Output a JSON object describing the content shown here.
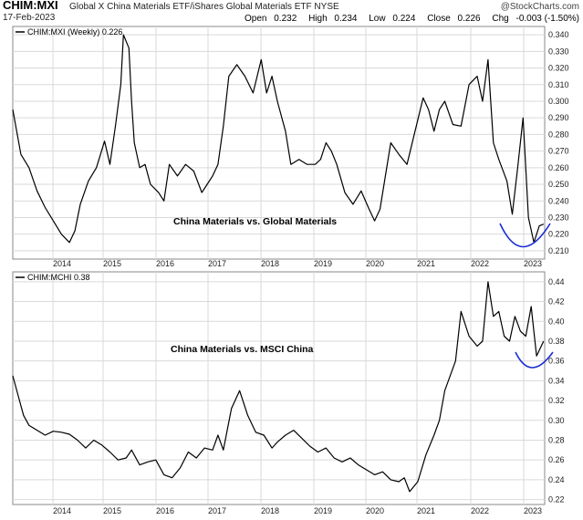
{
  "header": {
    "symbol": "CHIM:MXI",
    "description": "Global X China Materials ETF/iShares Global Materials ETF  NYSE",
    "brand": "@StockCharts.com",
    "date": "17-Feb-2023",
    "open_label": "Open",
    "open": "0.232",
    "high_label": "High",
    "high": "0.234",
    "low_label": "Low",
    "low": "0.224",
    "close_label": "Close",
    "close": "0.226",
    "chg_label": "Chg",
    "chg": "-0.003 (-1.50%)",
    "dropdown_icon": "triangle-down-icon"
  },
  "colors": {
    "price_line": "#000000",
    "annotation_curve": "#1a2fd6",
    "grid": "#d9d9d9",
    "background": "#ffffff"
  },
  "chart_data": [
    {
      "type": "line",
      "legend": "CHIM:MXI (Weekly) 0.226",
      "annotation": "China Materials vs. Global Materials",
      "xticks": [
        "2014",
        "2015",
        "2016",
        "2017",
        "2018",
        "2019",
        "2020",
        "2021",
        "2022",
        "2023"
      ],
      "yticks": [
        "0.210",
        "0.220",
        "0.230",
        "0.240",
        "0.250",
        "0.260",
        "0.270",
        "0.280",
        "0.290",
        "0.300",
        "0.310",
        "0.320",
        "0.330",
        "0.340"
      ],
      "ylim": [
        0.205,
        0.345
      ],
      "xlim": [
        2013.3,
        2023.15
      ],
      "grid": true,
      "x": [
        2013.3,
        2013.45,
        2013.6,
        2013.75,
        2013.9,
        2014.05,
        2014.2,
        2014.35,
        2014.45,
        2014.55,
        2014.7,
        2014.85,
        2015.0,
        2015.1,
        2015.2,
        2015.3,
        2015.35,
        2015.45,
        2015.5,
        2015.55,
        2015.65,
        2015.75,
        2015.85,
        2016.0,
        2016.1,
        2016.2,
        2016.35,
        2016.5,
        2016.65,
        2016.8,
        2016.9,
        2017.0,
        2017.1,
        2017.2,
        2017.3,
        2017.45,
        2017.6,
        2017.75,
        2017.9,
        2018.0,
        2018.1,
        2018.2,
        2018.35,
        2018.45,
        2018.6,
        2018.75,
        2018.9,
        2019.0,
        2019.1,
        2019.2,
        2019.3,
        2019.45,
        2019.6,
        2019.75,
        2019.9,
        2020.0,
        2020.1,
        2020.2,
        2020.3,
        2020.45,
        2020.6,
        2020.75,
        2020.9,
        2021.0,
        2021.1,
        2021.2,
        2021.3,
        2021.45,
        2021.6,
        2021.75,
        2021.9,
        2022.0,
        2022.1,
        2022.2,
        2022.3,
        2022.45,
        2022.55,
        2022.65,
        2022.75,
        2022.85,
        2022.95,
        2023.05,
        2023.13
      ],
      "y": [
        0.295,
        0.268,
        0.26,
        0.246,
        0.236,
        0.228,
        0.22,
        0.215,
        0.222,
        0.238,
        0.252,
        0.26,
        0.276,
        0.262,
        0.285,
        0.31,
        0.34,
        0.332,
        0.3,
        0.275,
        0.26,
        0.262,
        0.25,
        0.245,
        0.24,
        0.262,
        0.255,
        0.262,
        0.258,
        0.245,
        0.25,
        0.255,
        0.262,
        0.285,
        0.315,
        0.322,
        0.315,
        0.305,
        0.325,
        0.305,
        0.315,
        0.3,
        0.282,
        0.262,
        0.265,
        0.262,
        0.262,
        0.265,
        0.275,
        0.27,
        0.262,
        0.245,
        0.238,
        0.246,
        0.235,
        0.228,
        0.235,
        0.255,
        0.275,
        0.268,
        0.262,
        0.282,
        0.302,
        0.295,
        0.282,
        0.295,
        0.3,
        0.286,
        0.285,
        0.31,
        0.315,
        0.3,
        0.325,
        0.275,
        0.265,
        0.252,
        0.232,
        0.26,
        0.29,
        0.23,
        0.215,
        0.225,
        0.226
      ]
    },
    {
      "type": "line",
      "legend": "CHIM:MCHI 0.38",
      "annotation": "China Materials vs. MSCI China",
      "xticks": [
        "2014",
        "2015",
        "2016",
        "2017",
        "2018",
        "2019",
        "2020",
        "2021",
        "2022",
        "2023"
      ],
      "yticks": [
        "0.22",
        "0.24",
        "0.26",
        "0.28",
        "0.30",
        "0.32",
        "0.34",
        "0.36",
        "0.38",
        "0.40",
        "0.42",
        "0.44"
      ],
      "ylim": [
        0.215,
        0.45
      ],
      "xlim": [
        2013.3,
        2023.15
      ],
      "grid": true,
      "x": [
        2013.3,
        2013.4,
        2013.5,
        2013.6,
        2013.75,
        2013.9,
        2014.05,
        2014.2,
        2014.35,
        2014.5,
        2014.65,
        2014.8,
        2014.95,
        2015.1,
        2015.25,
        2015.4,
        2015.5,
        2015.65,
        2015.8,
        2015.95,
        2016.1,
        2016.25,
        2016.4,
        2016.55,
        2016.7,
        2016.85,
        2017.0,
        2017.1,
        2017.2,
        2017.35,
        2017.5,
        2017.65,
        2017.8,
        2017.95,
        2018.1,
        2018.2,
        2018.35,
        2018.5,
        2018.65,
        2018.8,
        2018.95,
        2019.1,
        2019.25,
        2019.4,
        2019.55,
        2019.7,
        2019.85,
        2020.0,
        2020.15,
        2020.3,
        2020.45,
        2020.55,
        2020.65,
        2020.8,
        2020.95,
        2021.1,
        2021.2,
        2021.3,
        2021.4,
        2021.5,
        2021.6,
        2021.75,
        2021.9,
        2022.0,
        2022.1,
        2022.2,
        2022.3,
        2022.4,
        2022.5,
        2022.6,
        2022.7,
        2022.8,
        2022.9,
        2023.0,
        2023.13
      ],
      "y": [
        0.345,
        0.325,
        0.305,
        0.295,
        0.29,
        0.285,
        0.289,
        0.288,
        0.286,
        0.28,
        0.272,
        0.28,
        0.275,
        0.268,
        0.26,
        0.262,
        0.27,
        0.255,
        0.258,
        0.26,
        0.245,
        0.242,
        0.252,
        0.268,
        0.262,
        0.272,
        0.27,
        0.285,
        0.27,
        0.312,
        0.33,
        0.305,
        0.288,
        0.285,
        0.272,
        0.278,
        0.285,
        0.29,
        0.282,
        0.274,
        0.268,
        0.272,
        0.262,
        0.258,
        0.262,
        0.255,
        0.25,
        0.245,
        0.248,
        0.24,
        0.238,
        0.242,
        0.228,
        0.238,
        0.265,
        0.285,
        0.3,
        0.33,
        0.345,
        0.36,
        0.41,
        0.385,
        0.375,
        0.38,
        0.44,
        0.405,
        0.41,
        0.385,
        0.38,
        0.405,
        0.39,
        0.385,
        0.415,
        0.365,
        0.38
      ]
    }
  ]
}
